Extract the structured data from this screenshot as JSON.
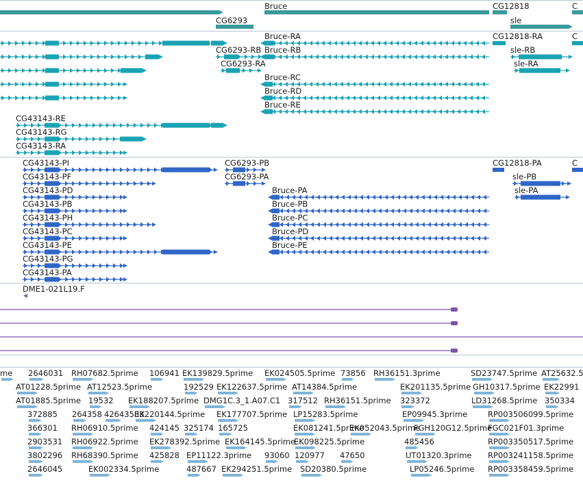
{
  "colors": {
    "gene": "#3b9a9c",
    "transcript": "#1aa3b3",
    "protein": "#2f66c8",
    "clone": "#7b55a8",
    "est": "#7fb4d9",
    "divider": "#b8c6d4"
  },
  "tracks": {
    "genes": [
      "Bruce",
      "CG12818",
      "CG6293",
      "sle"
    ],
    "transcripts": [
      "Bruce-RA",
      "CG12818-RA",
      "CG6293-RB",
      "Bruce-RB",
      "sle-RB",
      "CG6293-RA",
      "sle-RA",
      "Bruce-RC",
      "Bruce-RD",
      "Bruce-RE",
      "CG43143-RE",
      "CG43143-RG",
      "CG43143-RA"
    ],
    "proteins": [
      "CG43143-PI",
      "CG6293-PB",
      "CG12818-PA",
      "CG43143-PF",
      "CG6293-PA",
      "sle-PB",
      "CG43143-PD",
      "Bruce-PA",
      "sle-PA",
      "CG43143-PB",
      "Bruce-PB",
      "CG43143-PH",
      "Bruce-PC",
      "CG43143-PC",
      "Bruce-PD",
      "CG43143-PE",
      "Bruce-PE",
      "CG43143-PG",
      "CG43143-PA"
    ],
    "clones": [
      "DME1-021L19.F"
    ],
    "ests": [
      [
        "me",
        "2646031",
        "RH07682.5prime",
        "106941",
        "EK139829.5prime",
        "EK024505.5prime",
        "73856",
        "RH36151.3prime",
        "SD23747.5prime",
        "AT25632.5"
      ],
      [
        "AT01228.5prime",
        "AT12523.5prime",
        "192529",
        "EK122637.5prime",
        "AT14384.5prime",
        "EK201135.5prime",
        "GH10317.5prime",
        "EK22991"
      ],
      [
        "AT01885.5prime",
        "19532",
        "EK188207.5prime",
        "DMG1C.3_1.A07.C1",
        "317512",
        "RH36151.5prime",
        "323372",
        "LD31268.5prime",
        "350334"
      ],
      [
        "372885",
        "264358",
        "42643583",
        "EK220144.5prime",
        "EK177707.5prime",
        "LP15283.5prime",
        "EP09945.3prime",
        "RP003506099.5prime"
      ],
      [
        "366301",
        "RH06910.5prime",
        "424145",
        "325174",
        "165725",
        "EK081241.5prime",
        "EK052043.5prime",
        "FGH120G12.5prime",
        "FGC021F01.3prime"
      ],
      [
        "2903531",
        "RH06922.5prime",
        "EK278392.5prime",
        "EK164145.5prime",
        "EK098225.5prime",
        "485456",
        "RP003350517.5prime"
      ],
      [
        "3802296",
        "RH68390.5prime",
        "425828",
        "EP11122.3prime",
        "93060",
        "120977",
        "47650",
        "UT01320.3prime",
        "RP003241158.5prime"
      ],
      [
        "2646045",
        "EK002334.5prime",
        "487667",
        "EK294251.5prime",
        "SD20380.5prime",
        "LP05246.5prime",
        "RP003358459.5prime"
      ]
    ]
  }
}
